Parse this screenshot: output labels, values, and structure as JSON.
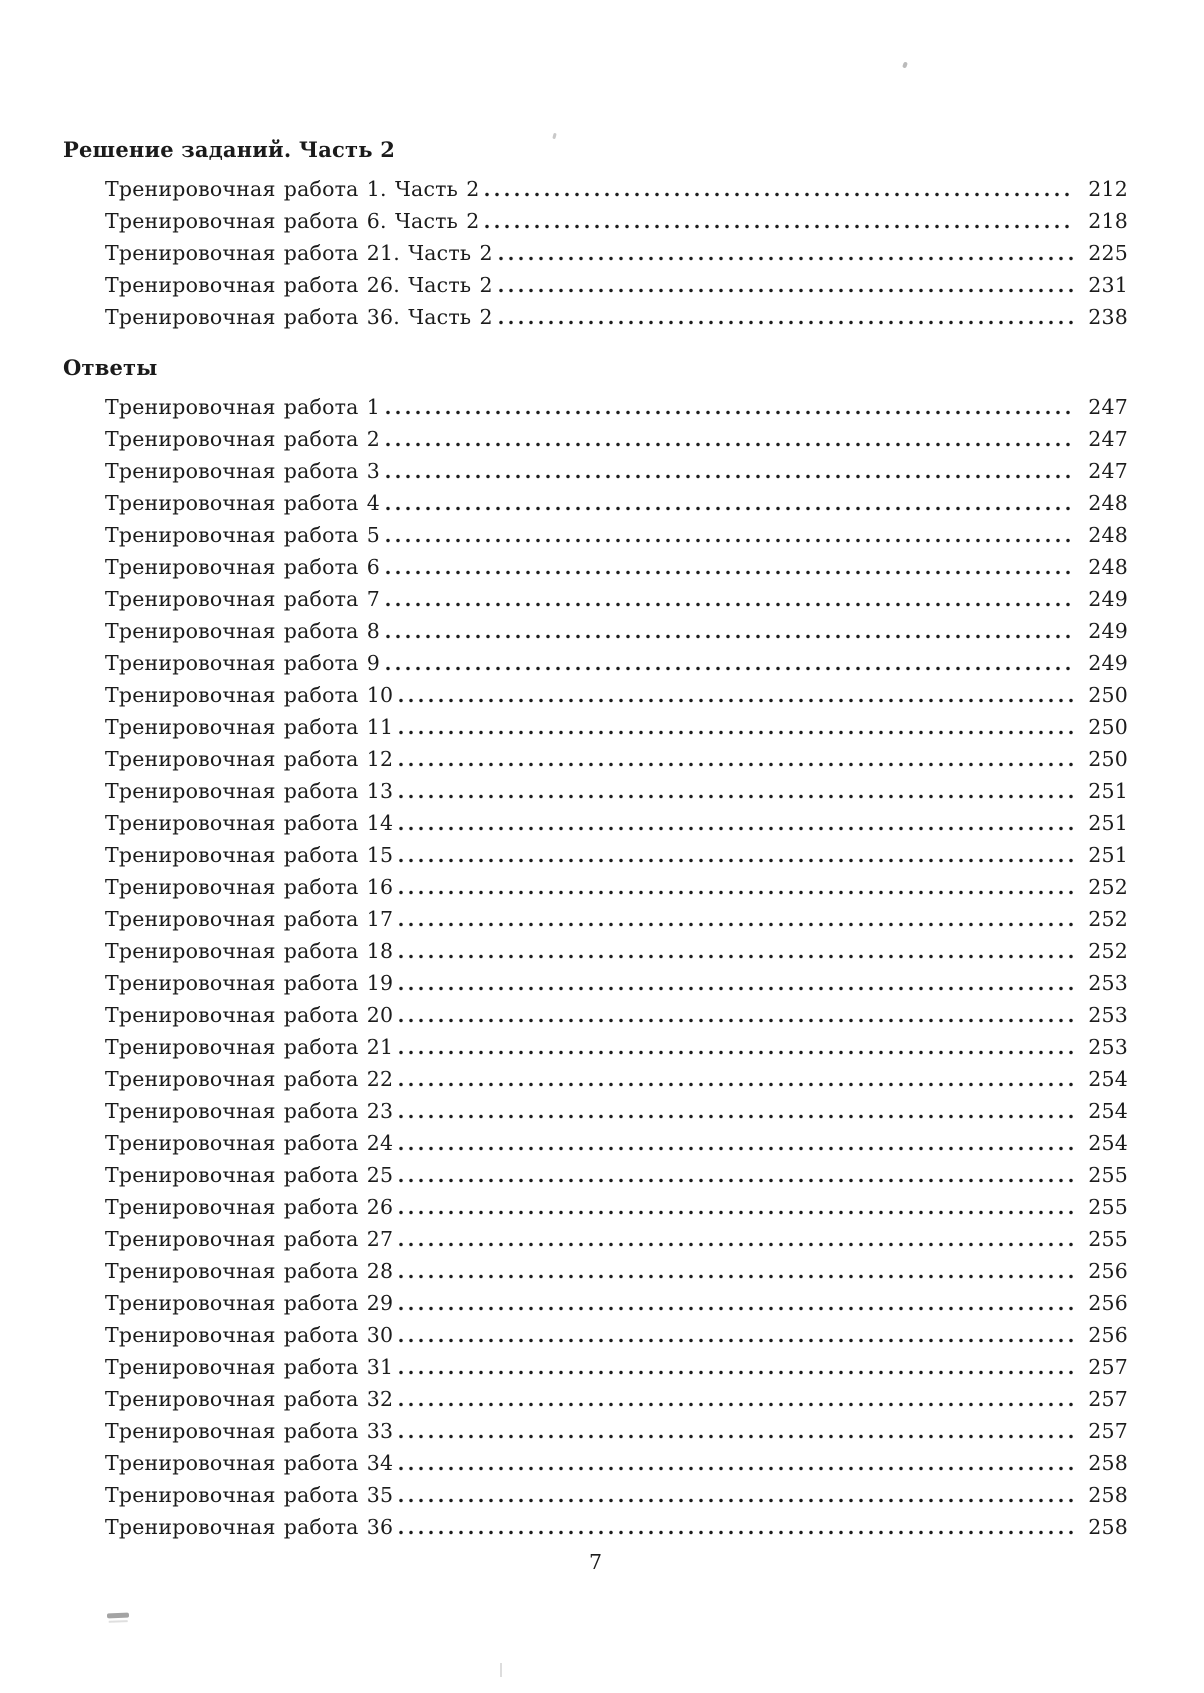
{
  "folio": "7",
  "sections": [
    {
      "heading": "Решение заданий. Часть 2",
      "entries": [
        {
          "label": "Тренировочная работа 1. Часть 2",
          "page": "212"
        },
        {
          "label": "Тренировочная работа 6. Часть 2",
          "page": "218"
        },
        {
          "label": "Тренировочная работа 21. Часть 2",
          "page": "225"
        },
        {
          "label": "Тренировочная работа 26. Часть 2",
          "page": "231"
        },
        {
          "label": "Тренировочная работа 36. Часть 2",
          "page": "238"
        }
      ]
    },
    {
      "heading": "Ответы",
      "entries": [
        {
          "label": "Тренировочная работа 1",
          "page": "247"
        },
        {
          "label": "Тренировочная работа 2",
          "page": "247"
        },
        {
          "label": "Тренировочная работа 3",
          "page": "247"
        },
        {
          "label": "Тренировочная работа 4",
          "page": "248"
        },
        {
          "label": "Тренировочная работа 5",
          "page": "248"
        },
        {
          "label": "Тренировочная работа 6",
          "page": "248"
        },
        {
          "label": "Тренировочная работа 7",
          "page": "249"
        },
        {
          "label": "Тренировочная работа 8",
          "page": "249"
        },
        {
          "label": "Тренировочная работа 9",
          "page": "249"
        },
        {
          "label": "Тренировочная работа 10",
          "page": "250"
        },
        {
          "label": "Тренировочная работа 11",
          "page": "250"
        },
        {
          "label": "Тренировочная работа 12",
          "page": "250"
        },
        {
          "label": "Тренировочная работа 13",
          "page": "251"
        },
        {
          "label": "Тренировочная работа 14",
          "page": "251"
        },
        {
          "label": "Тренировочная работа 15",
          "page": "251"
        },
        {
          "label": "Тренировочная работа 16",
          "page": "252"
        },
        {
          "label": "Тренировочная работа 17",
          "page": "252"
        },
        {
          "label": "Тренировочная работа 18",
          "page": "252"
        },
        {
          "label": "Тренировочная работа 19",
          "page": "253"
        },
        {
          "label": "Тренировочная работа 20",
          "page": "253"
        },
        {
          "label": "Тренировочная работа 21",
          "page": "253"
        },
        {
          "label": "Тренировочная работа 22",
          "page": "254"
        },
        {
          "label": "Тренировочная работа 23",
          "page": "254"
        },
        {
          "label": "Тренировочная работа 24",
          "page": "254"
        },
        {
          "label": "Тренировочная работа 25",
          "page": "255"
        },
        {
          "label": "Тренировочная работа 26",
          "page": "255"
        },
        {
          "label": "Тренировочная работа 27",
          "page": "255"
        },
        {
          "label": "Тренировочная работа 28",
          "page": "256"
        },
        {
          "label": "Тренировочная работа 29",
          "page": "256"
        },
        {
          "label": "Тренировочная работа 30",
          "page": "256"
        },
        {
          "label": "Тренировочная работа 31",
          "page": "257"
        },
        {
          "label": "Тренировочная работа 32",
          "page": "257"
        },
        {
          "label": "Тренировочная работа 33",
          "page": "257"
        },
        {
          "label": "Тренировочная работа 34",
          "page": "258"
        },
        {
          "label": "Тренировочная работа 35",
          "page": "258"
        },
        {
          "label": "Тренировочная работа 36",
          "page": "258"
        }
      ]
    }
  ]
}
